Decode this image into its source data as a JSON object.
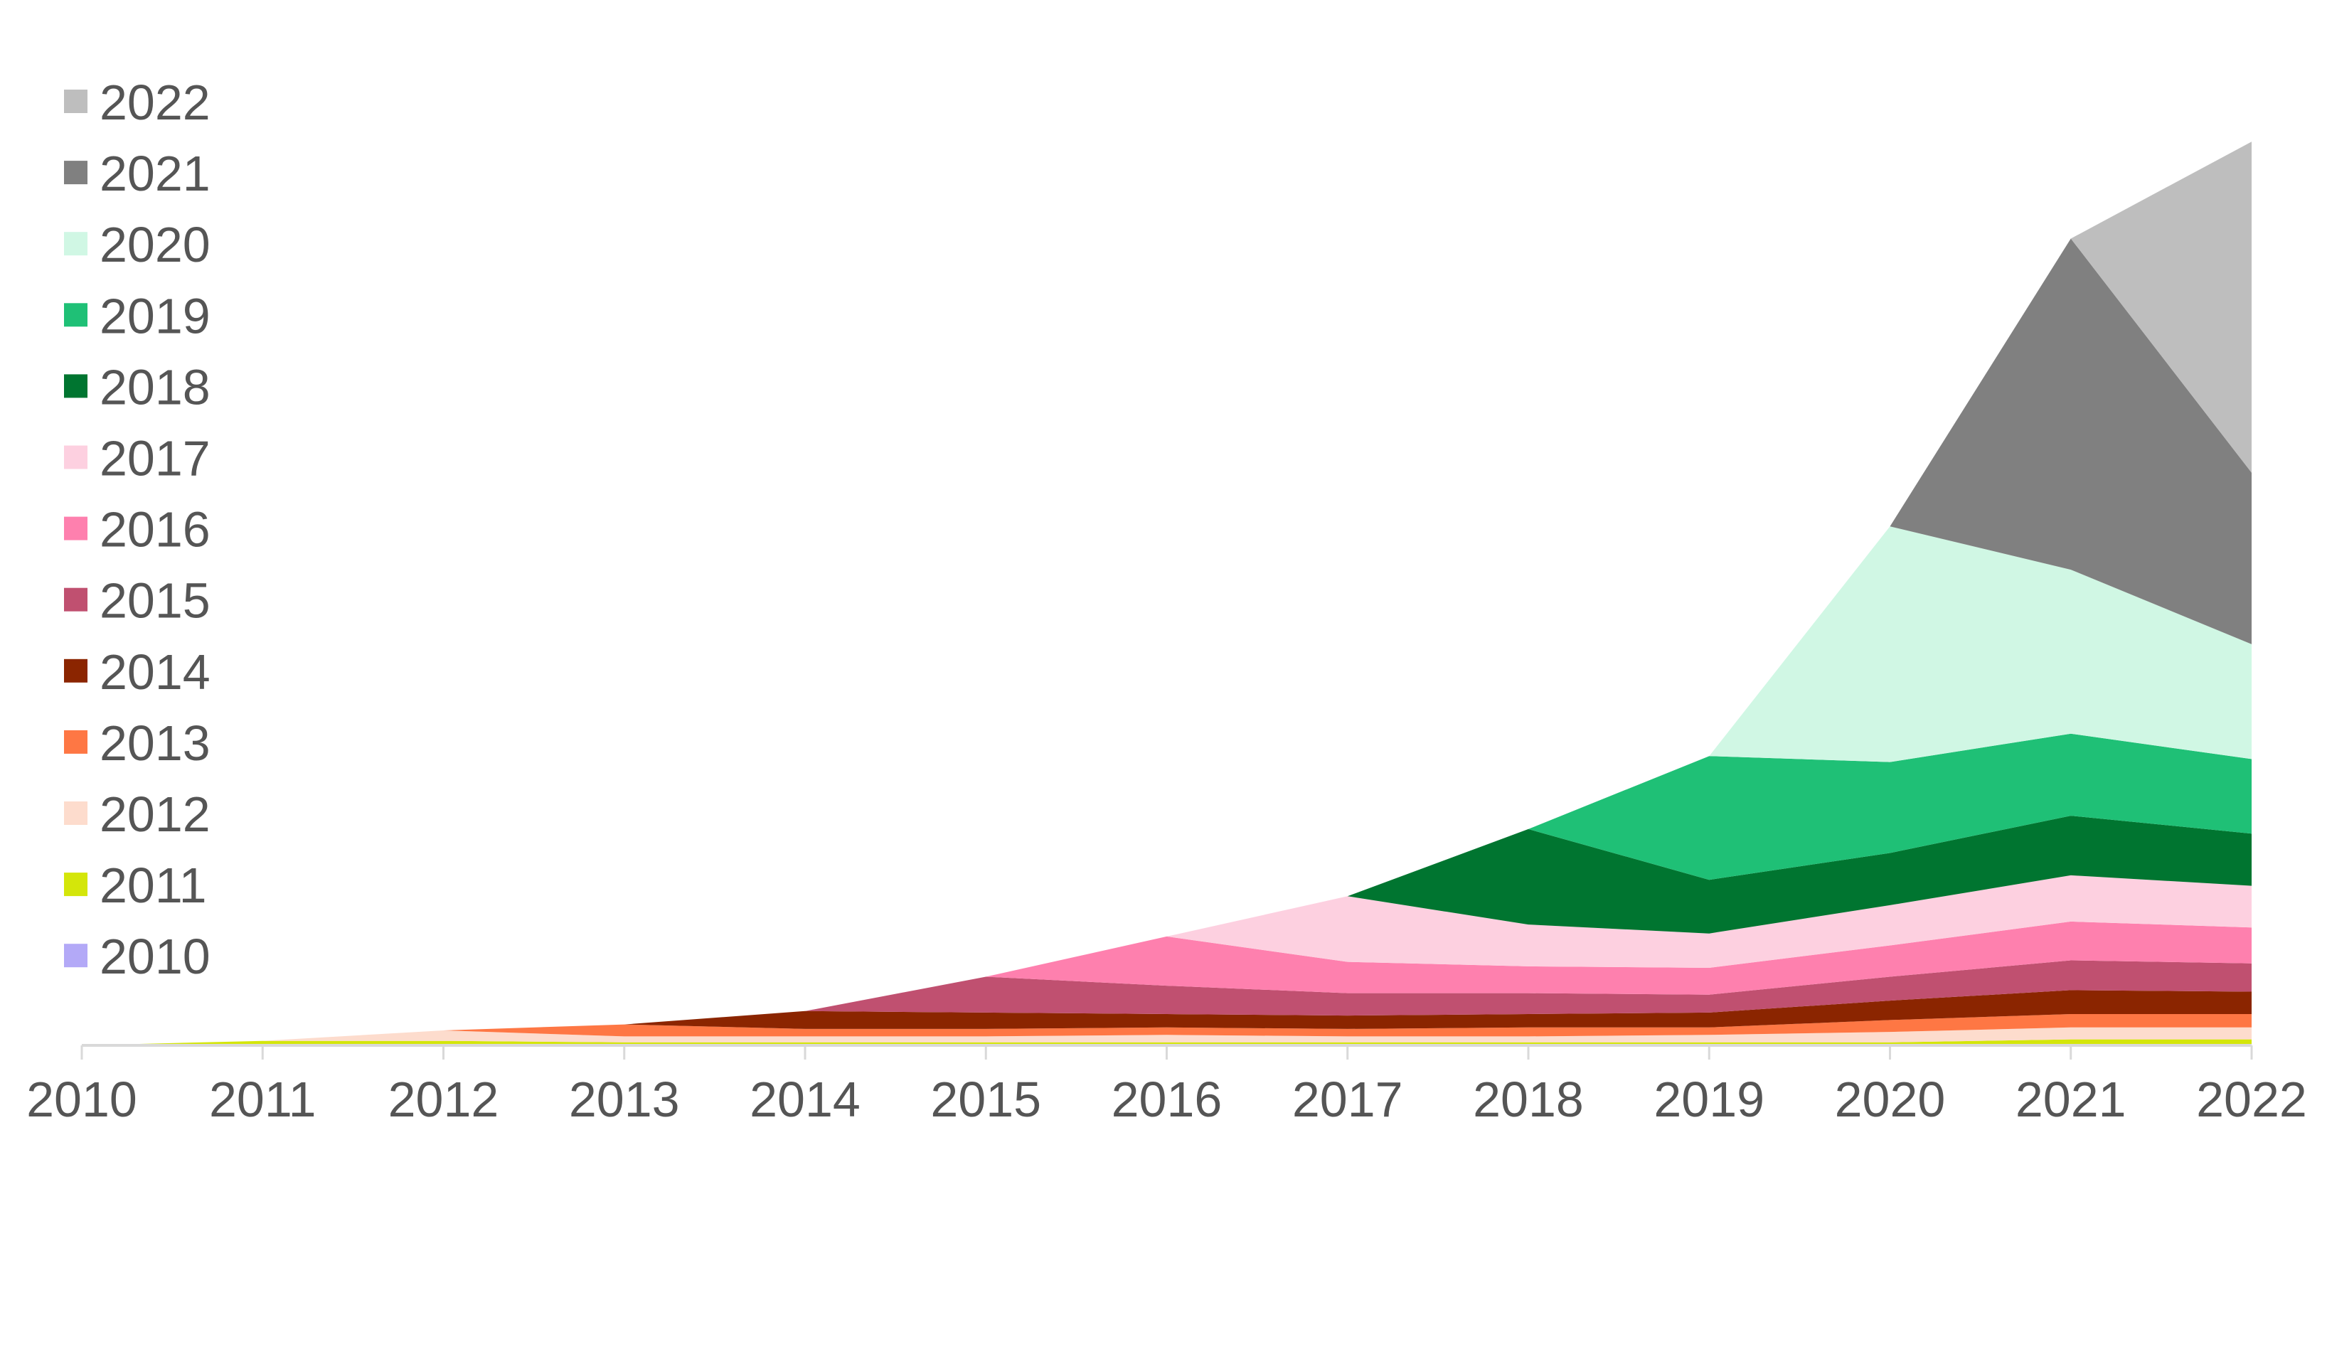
{
  "chart_data": {
    "type": "area",
    "stacked": true,
    "title": "",
    "xlabel": "",
    "ylabel": "",
    "y_axis_shown": false,
    "grid": false,
    "legend_position": "top-left",
    "categories": [
      "2010",
      "2011",
      "2012",
      "2013",
      "2014",
      "2015",
      "2016",
      "2017",
      "2018",
      "2019",
      "2020",
      "2021",
      "2022"
    ],
    "series": [
      {
        "name": "2010",
        "color": "#b3a9f7",
        "values": [
          0,
          0,
          0,
          0,
          0,
          0,
          0,
          0,
          0,
          0,
          0,
          0,
          0
        ]
      },
      {
        "name": "2011",
        "color": "#d4e60a",
        "values": [
          0,
          3,
          3,
          2,
          2,
          2,
          2,
          2,
          2,
          2,
          2,
          4,
          4
        ]
      },
      {
        "name": "2012",
        "color": "#fddccd",
        "values": [
          0,
          0,
          7,
          4,
          4,
          4,
          5,
          4,
          4,
          5,
          7,
          8,
          8
        ]
      },
      {
        "name": "2013",
        "color": "#fe7744",
        "values": [
          0,
          0,
          0,
          8,
          5,
          5,
          5,
          5,
          6,
          5,
          8,
          9,
          9
        ]
      },
      {
        "name": "2014",
        "color": "#8b2500",
        "values": [
          0,
          0,
          0,
          0,
          12,
          11,
          9,
          9,
          9,
          10,
          13,
          16,
          15
        ]
      },
      {
        "name": "2015",
        "color": "#c05070",
        "values": [
          0,
          0,
          0,
          0,
          0,
          24,
          19,
          15,
          14,
          12,
          16,
          20,
          19
        ]
      },
      {
        "name": "2016",
        "color": "#fe80ae",
        "values": [
          0,
          0,
          0,
          0,
          0,
          0,
          33,
          21,
          18,
          18,
          21,
          26,
          24
        ]
      },
      {
        "name": "2017",
        "color": "#fdd0e0",
        "values": [
          0,
          0,
          0,
          0,
          0,
          0,
          0,
          44,
          28,
          23,
          27,
          31,
          28
        ]
      },
      {
        "name": "2018",
        "color": "#007530",
        "values": [
          0,
          0,
          0,
          0,
          0,
          0,
          0,
          0,
          64,
          36,
          35,
          40,
          35
        ]
      },
      {
        "name": "2019",
        "color": "#1fc076",
        "values": [
          0,
          0,
          0,
          0,
          0,
          0,
          0,
          0,
          0,
          83,
          61,
          55,
          50
        ]
      },
      {
        "name": "2020",
        "color": "#d0f7e4",
        "values": [
          0,
          0,
          0,
          0,
          0,
          0,
          0,
          0,
          0,
          0,
          158,
          110,
          77
        ]
      },
      {
        "name": "2021",
        "color": "#808080",
        "values": [
          0,
          0,
          0,
          0,
          0,
          0,
          0,
          0,
          0,
          0,
          0,
          222,
          115
        ]
      },
      {
        "name": "2022",
        "color": "#bebebe",
        "values": [
          0,
          0,
          0,
          0,
          0,
          0,
          0,
          0,
          0,
          0,
          0,
          0,
          222
        ]
      }
    ]
  }
}
